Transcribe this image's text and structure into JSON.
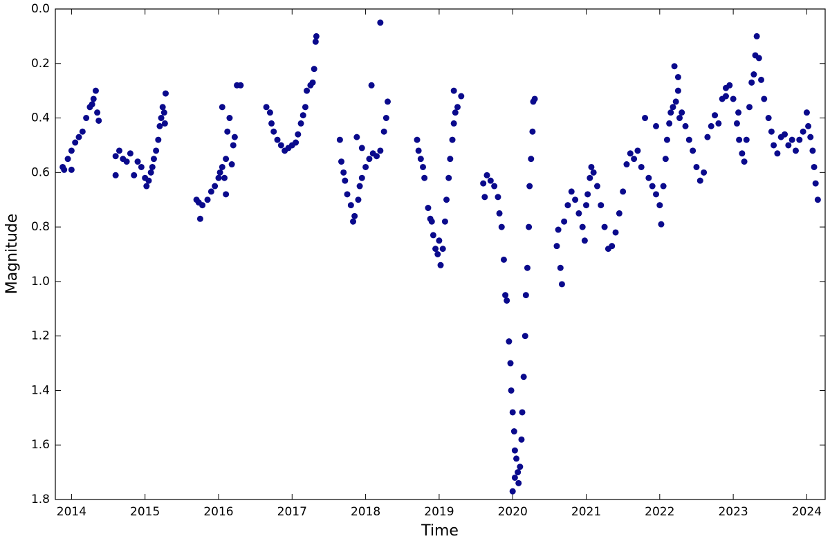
{
  "chart_data": {
    "type": "scatter",
    "x_label": "Time",
    "y_label": "Magnitude",
    "y_inverted": true,
    "xlim": [
      2013.78,
      2024.25
    ],
    "xticks": [
      2014,
      2015,
      2016,
      2017,
      2018,
      2019,
      2020,
      2021,
      2022,
      2023,
      2024
    ],
    "ylim": [
      0,
      1.8
    ],
    "yticks": [
      {
        "value": 0,
        "label": "0.0"
      },
      0.2,
      0.4,
      0.6,
      0.8,
      {
        "value": 1,
        "label": "1.0"
      },
      1.2,
      1.4,
      1.6,
      1.8
    ],
    "grid": false,
    "color": "#0a0a8c",
    "x": [
      2013.88,
      2013.9,
      2013.95,
      2014.0,
      2014.05,
      2014.1,
      2014.15,
      2014.2,
      2014.25,
      2014.28,
      2014.3,
      2014.33,
      2014.35,
      2014.37,
      2014.0,
      2014.6,
      2014.6,
      2014.65,
      2014.7,
      2014.75,
      2014.8,
      2014.85,
      2014.9,
      2014.95,
      2015.0,
      2015.02,
      2015.05,
      2015.08,
      2015.1,
      2015.12,
      2015.15,
      2015.18,
      2015.2,
      2015.22,
      2015.24,
      2015.26,
      2015.28,
      2015.27,
      2015.7,
      2015.73,
      2015.75,
      2015.78,
      2015.85,
      2015.9,
      2015.95,
      2016.0,
      2016.02,
      2016.05,
      2016.08,
      2016.1,
      2016.12,
      2016.15,
      2016.18,
      2016.2,
      2016.22,
      2016.25,
      2016.3,
      2016.05,
      2016.1,
      2016.65,
      2016.7,
      2016.72,
      2016.75,
      2016.8,
      2016.85,
      2016.9,
      2016.95,
      2017.0,
      2017.05,
      2017.08,
      2017.12,
      2017.15,
      2017.18,
      2017.2,
      2017.25,
      2017.28,
      2017.3,
      2017.32,
      2017.33,
      2017.65,
      2017.67,
      2017.7,
      2017.72,
      2017.75,
      2017.8,
      2017.83,
      2017.85,
      2017.9,
      2017.92,
      2017.95,
      2018.0,
      2018.05,
      2018.08,
      2018.1,
      2018.15,
      2018.2,
      2018.2,
      2018.25,
      2018.28,
      2018.3,
      2017.88,
      2017.95,
      2018.7,
      2018.72,
      2018.75,
      2018.78,
      2018.8,
      2018.85,
      2018.9,
      2018.92,
      2018.95,
      2018.98,
      2019.02,
      2019.05,
      2019.08,
      2019.1,
      2019.13,
      2019.15,
      2019.18,
      2019.2,
      2019.22,
      2019.25,
      2019.2,
      2019.3,
      2018.88,
      2019.0,
      2019.6,
      2019.62,
      2019.65,
      2019.7,
      2019.75,
      2019.8,
      2019.82,
      2019.85,
      2019.88,
      2019.9,
      2019.92,
      2019.95,
      2019.97,
      2019.98,
      2020.0,
      2020.02,
      2020.03,
      2020.05,
      2020.07,
      2020.08,
      2020.1,
      2020.12,
      2020.13,
      2020.15,
      2020.17,
      2020.18,
      2020.2,
      2020.22,
      2020.23,
      2020.25,
      2020.27,
      2020.28,
      2020.3,
      2020.0,
      2020.03,
      2020.6,
      2020.62,
      2020.65,
      2020.67,
      2020.7,
      2020.75,
      2020.8,
      2020.85,
      2020.9,
      2020.95,
      2021.0,
      2021.02,
      2021.05,
      2021.07,
      2021.1,
      2021.15,
      2021.2,
      2021.25,
      2021.3,
      2021.35,
      2021.4,
      2021.45,
      2021.5,
      2020.98,
      2021.55,
      2021.6,
      2021.65,
      2021.7,
      2021.75,
      2021.8,
      2021.85,
      2021.9,
      2021.95,
      2022.0,
      2022.02,
      2022.05,
      2022.08,
      2022.1,
      2022.13,
      2022.15,
      2022.18,
      2022.2,
      2022.22,
      2022.25,
      2022.27,
      2022.3,
      2022.35,
      2022.4,
      2022.45,
      2022.5,
      2022.55,
      2022.6,
      2021.95,
      2022.25,
      2022.65,
      2022.7,
      2022.75,
      2022.8,
      2022.85,
      2022.9,
      2022.95,
      2023.0,
      2023.05,
      2023.08,
      2023.12,
      2023.15,
      2023.18,
      2023.22,
      2023.25,
      2023.28,
      2023.3,
      2023.32,
      2023.35,
      2023.38,
      2023.42,
      2023.48,
      2023.52,
      2023.55,
      2023.6,
      2023.65,
      2023.7,
      2023.75,
      2023.8,
      2023.85,
      2023.9,
      2023.95,
      2024.0,
      2024.02,
      2024.05,
      2024.08,
      2024.1,
      2024.12,
      2024.15,
      2023.07,
      2022.9
    ],
    "values": [
      0.58,
      0.59,
      0.55,
      0.52,
      0.49,
      0.47,
      0.45,
      0.4,
      0.36,
      0.35,
      0.33,
      0.3,
      0.38,
      0.41,
      0.59,
      0.54,
      0.61,
      0.52,
      0.55,
      0.56,
      0.53,
      0.61,
      0.56,
      0.58,
      0.62,
      0.65,
      0.63,
      0.6,
      0.58,
      0.55,
      0.52,
      0.48,
      0.43,
      0.4,
      0.36,
      0.38,
      0.31,
      0.42,
      0.7,
      0.71,
      0.77,
      0.72,
      0.7,
      0.67,
      0.65,
      0.62,
      0.6,
      0.58,
      0.62,
      0.55,
      0.45,
      0.4,
      0.57,
      0.5,
      0.47,
      0.28,
      0.28,
      0.36,
      0.68,
      0.36,
      0.38,
      0.42,
      0.45,
      0.48,
      0.5,
      0.52,
      0.51,
      0.5,
      0.49,
      0.46,
      0.42,
      0.39,
      0.36,
      0.3,
      0.28,
      0.27,
      0.22,
      0.12,
      0.1,
      0.48,
      0.56,
      0.6,
      0.63,
      0.68,
      0.72,
      0.78,
      0.76,
      0.7,
      0.65,
      0.62,
      0.58,
      0.55,
      0.28,
      0.53,
      0.54,
      0.52,
      0.05,
      0.45,
      0.4,
      0.34,
      0.47,
      0.51,
      0.48,
      0.52,
      0.55,
      0.58,
      0.62,
      0.73,
      0.78,
      0.83,
      0.88,
      0.9,
      0.94,
      0.88,
      0.78,
      0.7,
      0.62,
      0.55,
      0.48,
      0.42,
      0.38,
      0.36,
      0.3,
      0.32,
      0.77,
      0.85,
      0.64,
      0.69,
      0.61,
      0.63,
      0.65,
      0.69,
      0.75,
      0.8,
      0.92,
      1.05,
      1.07,
      1.22,
      1.3,
      1.4,
      1.48,
      1.55,
      1.62,
      1.65,
      1.7,
      1.74,
      1.68,
      1.58,
      1.48,
      1.35,
      1.2,
      1.05,
      0.95,
      0.8,
      0.65,
      0.55,
      0.45,
      0.34,
      0.33,
      1.77,
      1.72,
      0.87,
      0.81,
      0.95,
      1.01,
      0.78,
      0.72,
      0.67,
      0.7,
      0.75,
      0.8,
      0.72,
      0.68,
      0.62,
      0.58,
      0.6,
      0.65,
      0.72,
      0.8,
      0.88,
      0.87,
      0.82,
      0.75,
      0.67,
      0.85,
      0.57,
      0.53,
      0.55,
      0.52,
      0.58,
      0.4,
      0.62,
      0.65,
      0.68,
      0.72,
      0.79,
      0.65,
      0.55,
      0.48,
      0.42,
      0.38,
      0.36,
      0.21,
      0.34,
      0.3,
      0.4,
      0.38,
      0.43,
      0.48,
      0.52,
      0.58,
      0.63,
      0.6,
      0.43,
      0.25,
      0.47,
      0.43,
      0.39,
      0.42,
      0.33,
      0.29,
      0.28,
      0.33,
      0.42,
      0.48,
      0.53,
      0.56,
      0.48,
      0.36,
      0.27,
      0.24,
      0.17,
      0.1,
      0.18,
      0.26,
      0.33,
      0.4,
      0.45,
      0.5,
      0.53,
      0.47,
      0.46,
      0.5,
      0.48,
      0.52,
      0.48,
      0.45,
      0.38,
      0.43,
      0.47,
      0.52,
      0.58,
      0.64,
      0.7,
      0.38,
      0.32
    ]
  }
}
